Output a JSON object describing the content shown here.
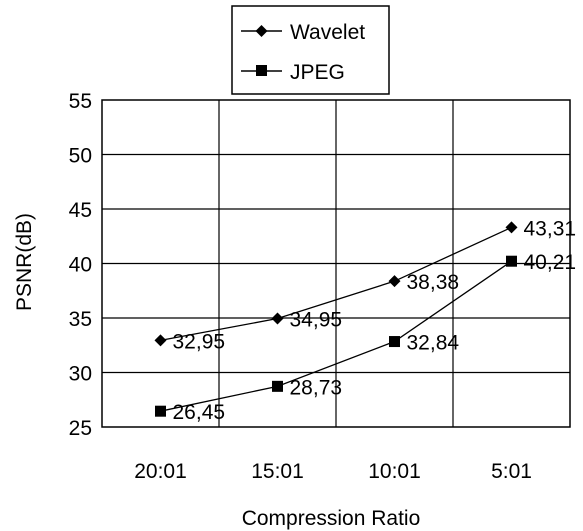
{
  "chart_data": {
    "type": "line",
    "title": "",
    "xlabel": "Compression Ratio",
    "ylabel": "PSNR(dB)",
    "categories": [
      "20:01",
      "15:01",
      "10:01",
      "5:01"
    ],
    "ylim": [
      25,
      55
    ],
    "yticks": [
      25,
      30,
      35,
      40,
      45,
      50,
      55
    ],
    "grid": true,
    "legend_position": "top",
    "series": [
      {
        "name": "Wavelet",
        "marker": "diamond",
        "values": [
          32.95,
          34.95,
          38.38,
          43.31
        ],
        "labels": [
          "32,95",
          "34,95",
          "38,38",
          "43,31"
        ]
      },
      {
        "name": "JPEG",
        "marker": "square",
        "values": [
          26.45,
          28.73,
          32.84,
          40.21
        ],
        "labels": [
          "26,45",
          "28,73",
          "32,84",
          "40,21"
        ]
      }
    ]
  }
}
